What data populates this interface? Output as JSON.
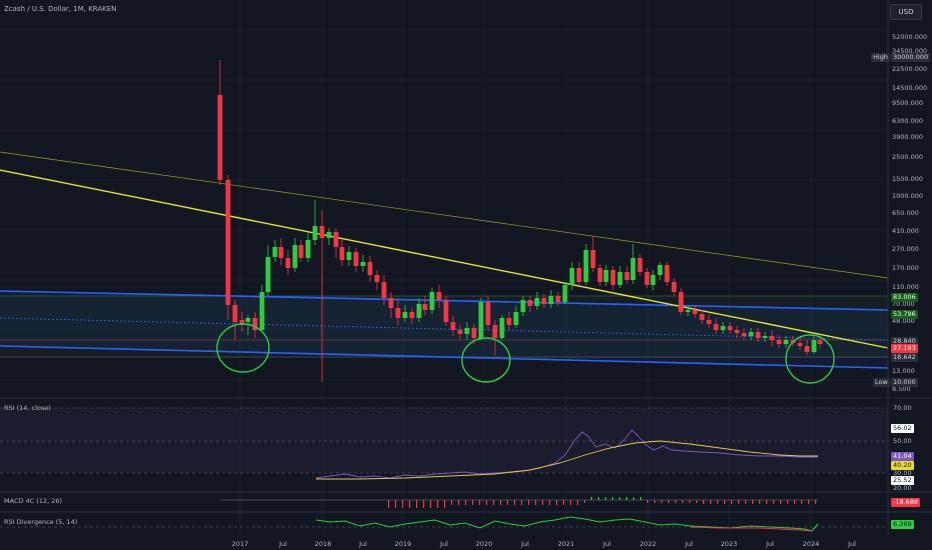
{
  "header": {
    "symbol_title": "Zcash / U.S. Dollar, 1M, KRAKEN",
    "currency": "USD"
  },
  "price_axis": {
    "ticks": [
      "52000.000",
      "34500.000",
      "22500.000",
      "14500.000",
      "9500.000",
      "6300.000",
      "3900.000",
      "2500.000",
      "1500.000",
      "1000.000",
      "650.000",
      "410.000",
      "270.000",
      "170.000",
      "110.000",
      "70.000",
      "48.000",
      "13.000",
      "8.500"
    ],
    "high_label": "High",
    "high_value": "30000.000",
    "low_label": "Low",
    "low_value": "10.000",
    "badges": [
      {
        "text": "83.006",
        "color": "#1b5e20",
        "fg": "#e6ffe6"
      },
      {
        "text": "53.796",
        "color": "#1b5e20",
        "fg": "#e6ffe6"
      },
      {
        "text": "28.840",
        "color": "#2a2e39",
        "fg": "#d1d4dc"
      },
      {
        "text": "27.193",
        "color": "#f23645",
        "fg": "#ffffff"
      },
      {
        "text": "18.642",
        "color": "#2a2e39",
        "fg": "#d1d4dc"
      }
    ]
  },
  "time_axis": {
    "labels": [
      "2017",
      "Jul",
      "2018",
      "Jul",
      "2019",
      "Jul",
      "2020",
      "Jul",
      "2021",
      "Jul",
      "2022",
      "Jul",
      "2023",
      "Jul",
      "2024",
      "Jul"
    ]
  },
  "rsi_pane": {
    "title": "RSI (14, close)",
    "ticks": [
      "70.00",
      "50.00",
      "30.00",
      "20.00"
    ],
    "badges": [
      {
        "text": "56.02",
        "color": "#ffffff",
        "fg": "#131722"
      },
      {
        "text": "41.04",
        "color": "#7e57c2",
        "fg": "#ffffff"
      },
      {
        "text": "40.20",
        "color": "#e6d92a",
        "fg": "#131722"
      },
      {
        "text": "25.52",
        "color": "#ffffff",
        "fg": "#131722"
      }
    ]
  },
  "macd_pane": {
    "title": "MACD 4C (12, 26)",
    "badge": {
      "text": "-18.688",
      "color": "#f23645",
      "fg": "#ffffff"
    }
  },
  "div_pane": {
    "title": "RSI Divergence (5, 14)",
    "badge": {
      "text": "6.269",
      "color": "#2ecc40",
      "fg": "#131722"
    }
  },
  "colors": {
    "background": "#131722",
    "up": "#2ecc40",
    "down": "#f23645",
    "trendline": "#e6e62a",
    "channel": "#2962ff",
    "circle": "#2ecc40",
    "rsi": "#7e57c2",
    "rsi_ma": "#e6c84a"
  }
}
